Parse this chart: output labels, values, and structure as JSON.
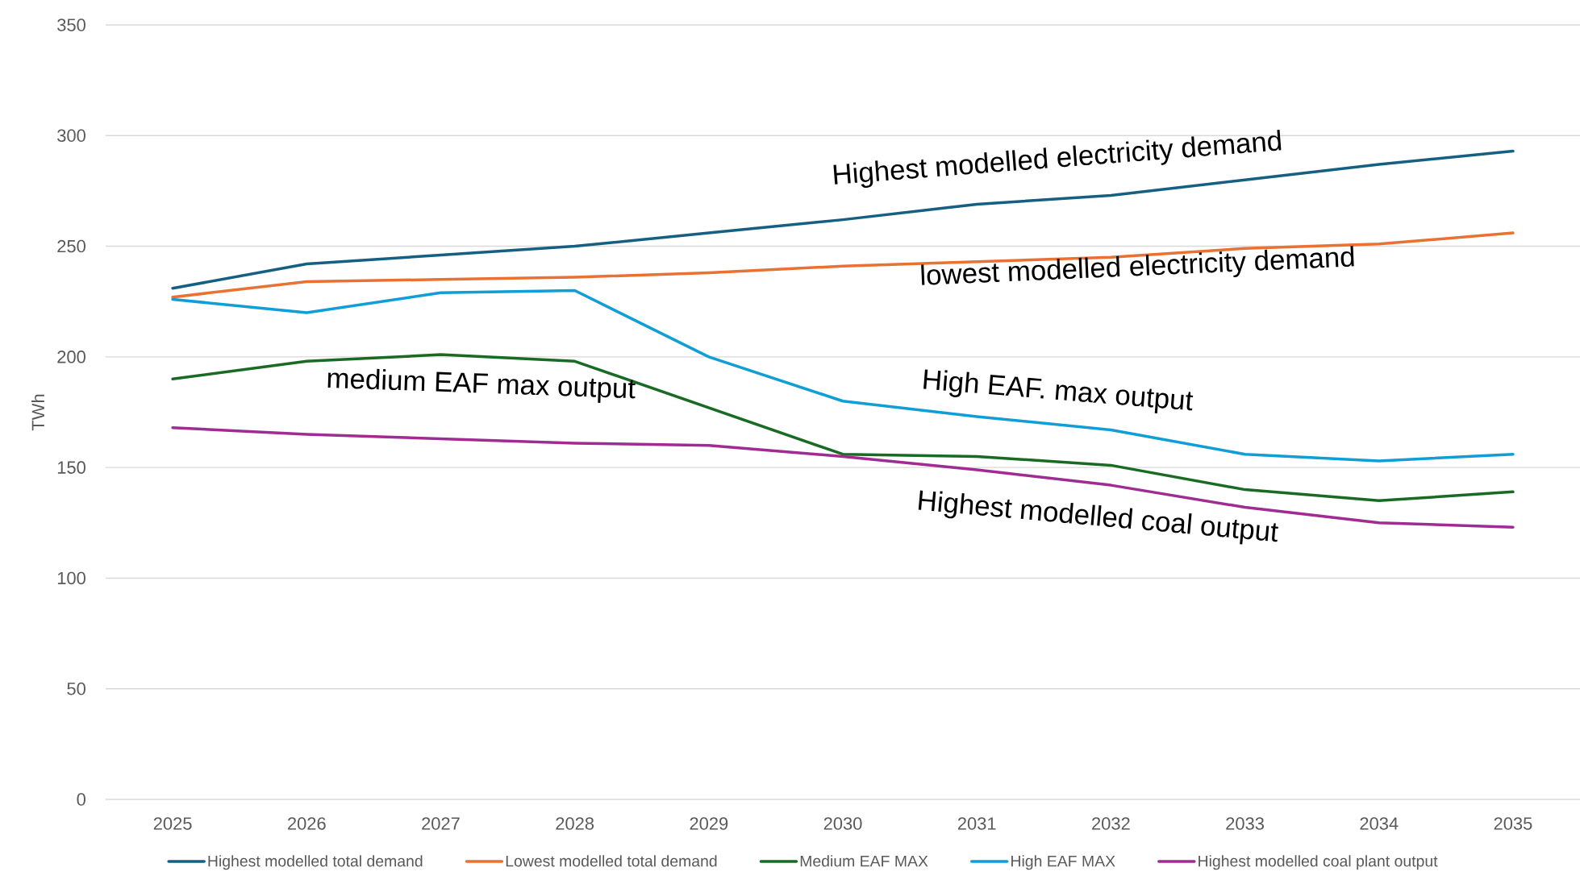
{
  "chart_data": {
    "type": "line",
    "x": [
      2025,
      2026,
      2027,
      2028,
      2029,
      2030,
      2031,
      2032,
      2033,
      2034,
      2035
    ],
    "series": [
      {
        "name": "Highest modelled total demand",
        "color": "#156082",
        "values": [
          231,
          242,
          246,
          250,
          256,
          262,
          269,
          273,
          280,
          287,
          293
        ]
      },
      {
        "name": "Lowest modelled total demand",
        "color": "#e97132",
        "values": [
          227,
          234,
          235,
          236,
          238,
          241,
          243,
          245,
          249,
          251,
          256
        ]
      },
      {
        "name": "Medium EAF MAX",
        "color": "#196b24",
        "values": [
          190,
          198,
          201,
          198,
          177,
          156,
          155,
          151,
          140,
          135,
          139
        ]
      },
      {
        "name": "High EAF MAX",
        "color": "#0f9ed5",
        "values": [
          226,
          220,
          229,
          230,
          200,
          180,
          173,
          167,
          156,
          153,
          156
        ]
      },
      {
        "name": "Highest modelled coal plant output",
        "color": "#a02b93",
        "values": [
          168,
          165,
          163,
          161,
          160,
          155,
          149,
          142,
          132,
          125,
          123
        ]
      }
    ],
    "ylabel": "TWh",
    "xlim": [
      2024.5,
      2035.5
    ],
    "xticks": [
      2025,
      2026,
      2027,
      2028,
      2029,
      2030,
      2031,
      2032,
      2033,
      2034,
      2035
    ],
    "ylim": [
      0,
      350
    ],
    "yticks": [
      0,
      50,
      100,
      150,
      200,
      250,
      300,
      350
    ],
    "grid": "y",
    "legend": "bottom",
    "marker": "none",
    "line_style": "solid",
    "annotations": [
      "Highest modelled electricity demand",
      "lowest modelled electricity demand",
      "medium EAF max output",
      "High EAF.  max output",
      "Highest modelled coal output"
    ]
  }
}
